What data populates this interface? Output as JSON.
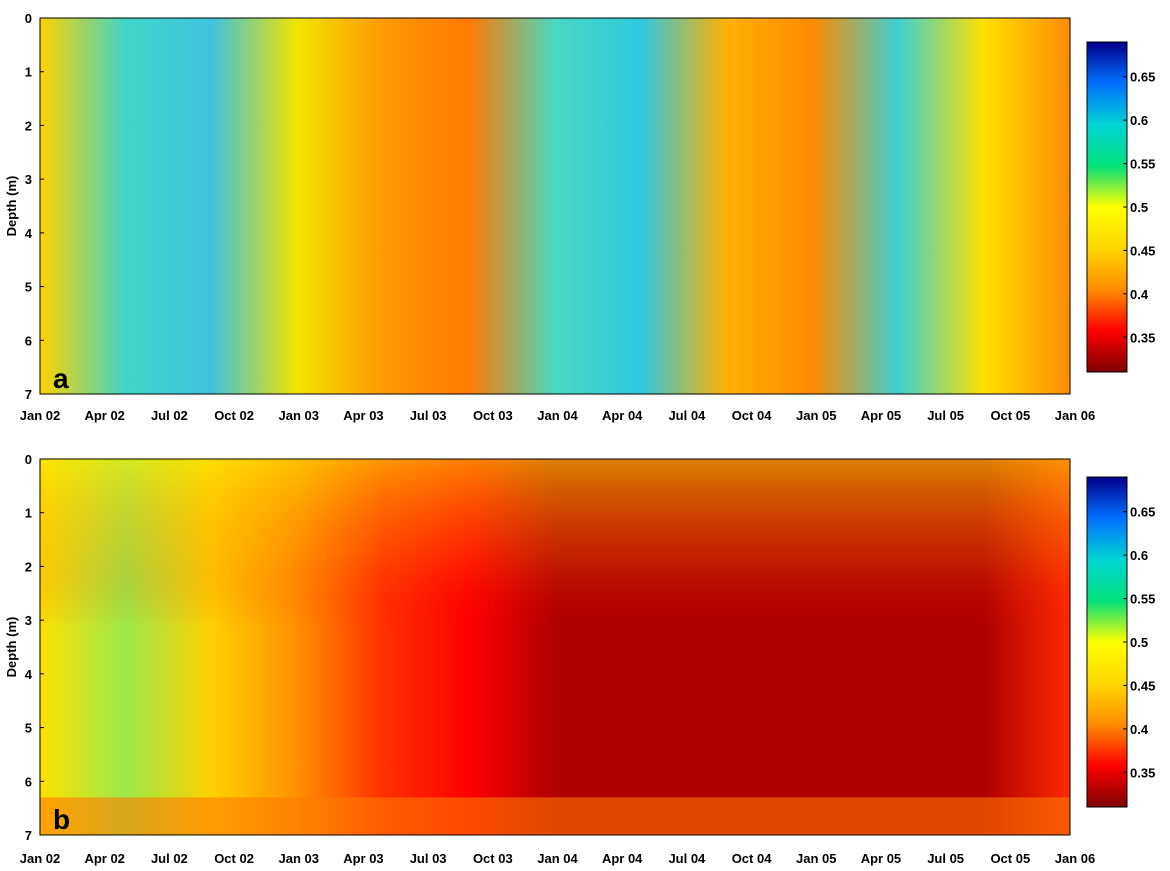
{
  "chart_data": [
    {
      "type": "heatmap",
      "panel_label": "a",
      "ylabel": "Depth (m)",
      "ylim": [
        0,
        7
      ],
      "y_ticks": [
        "0",
        "1",
        "2",
        "3",
        "4",
        "5",
        "6",
        "7"
      ],
      "x_ticks": [
        "Jan 02",
        "Apr 02",
        "Jul 02",
        "Oct 02",
        "Jan 03",
        "Apr 03",
        "Jul 03",
        "Oct 03",
        "Jan 04",
        "Apr 04",
        "Jul 04",
        "Oct 04",
        "Jan 05",
        "Apr 05",
        "Jul 05",
        "Oct 05",
        "Jan 06"
      ],
      "xlim": [
        "Jan 02",
        "Jan 06"
      ],
      "colorbar": {
        "ticks": [
          "0.35",
          "0.4",
          "0.45",
          "0.5",
          "0.55",
          "0.6",
          "0.65"
        ],
        "range": [
          0.31,
          0.69
        ]
      },
      "colors": [
        "#7f0000",
        "#ff0000",
        "#ff8c00",
        "#ffd700",
        "#ffff00",
        "#00e07a",
        "#00d4d4",
        "#0070ff",
        "#00008b"
      ]
    },
    {
      "type": "heatmap",
      "panel_label": "b",
      "ylabel": "Depth (m)",
      "ylim": [
        0,
        7
      ],
      "y_ticks": [
        "0",
        "1",
        "2",
        "3",
        "4",
        "5",
        "6",
        "7"
      ],
      "x_ticks": [
        "Jan 02",
        "Apr 02",
        "Jul 02",
        "Oct 02",
        "Jan 03",
        "Apr 03",
        "Jul 03",
        "Oct 03",
        "Jan 04",
        "Apr 04",
        "Jul 04",
        "Oct 04",
        "Jan 05",
        "Apr 05",
        "Jul 05",
        "Oct 05",
        "Jan 06"
      ],
      "xlim": [
        "Jan 02",
        "Jan 06"
      ],
      "colorbar": {
        "ticks": [
          "0.35",
          "0.4",
          "0.45",
          "0.5",
          "0.55",
          "0.6",
          "0.65"
        ],
        "range": [
          0.31,
          0.69
        ]
      },
      "colors": [
        "#7f0000",
        "#ff0000",
        "#ff8c00",
        "#ffd700",
        "#ffff00",
        "#00e07a",
        "#00d4d4",
        "#0070ff",
        "#00008b"
      ]
    }
  ]
}
